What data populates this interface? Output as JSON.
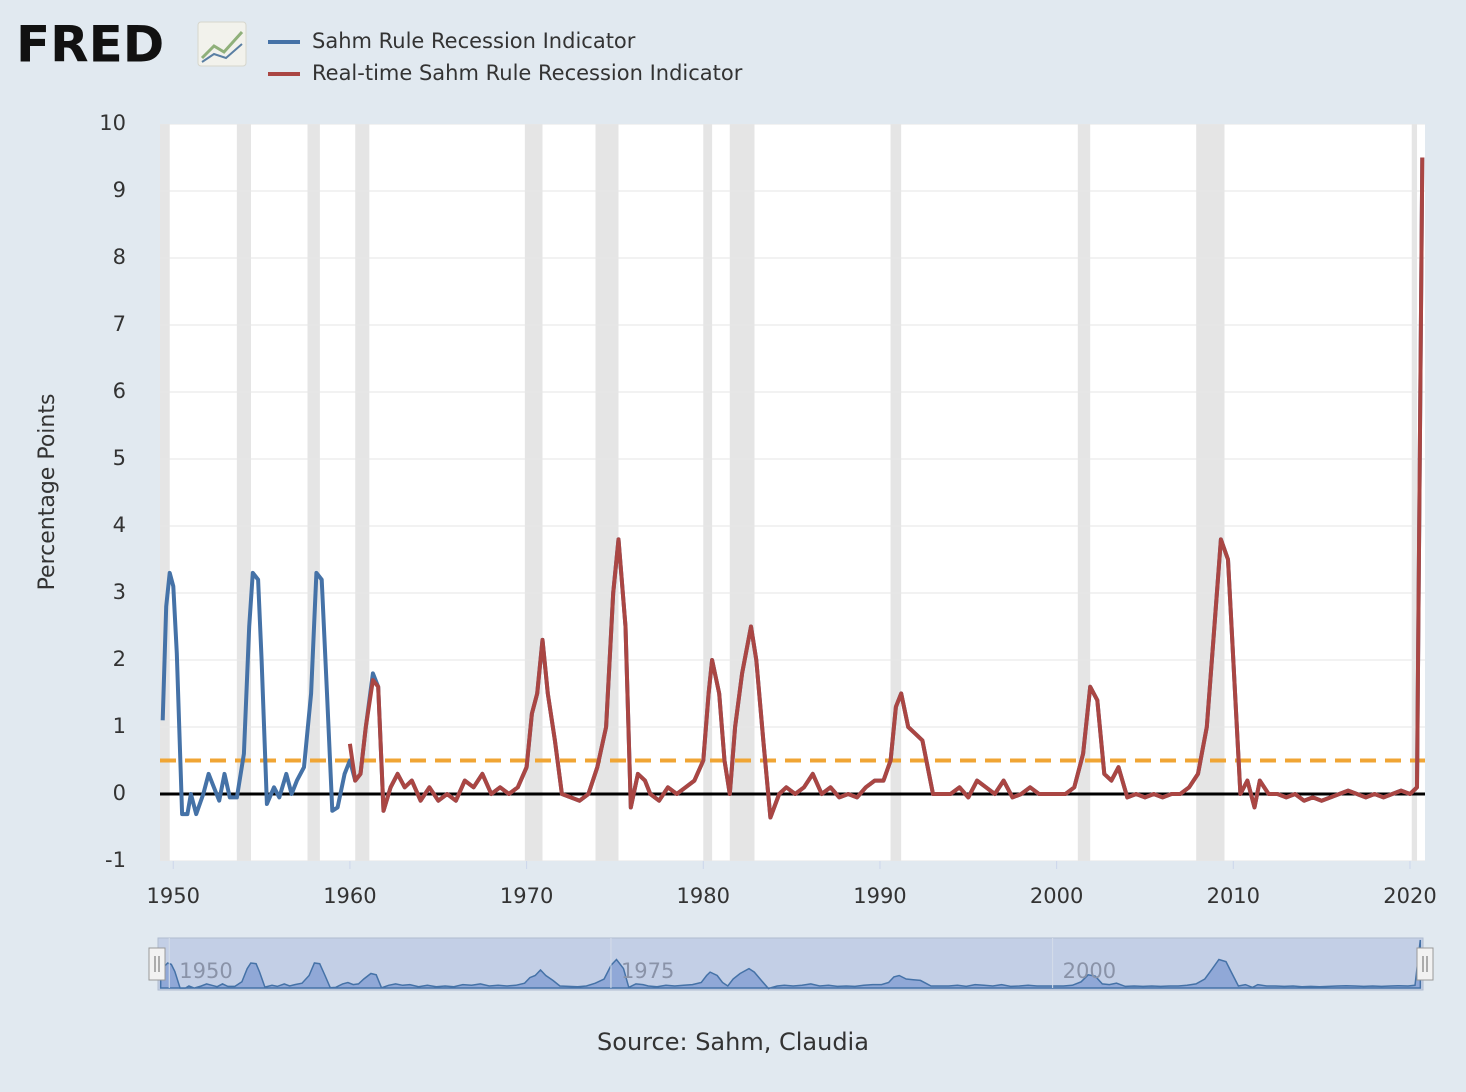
{
  "chart_data": {
    "type": "line",
    "logo": "FRED",
    "y_label": "Percentage Points",
    "source": "Source: Sahm, Claudia",
    "xlim": [
      1949.25,
      2020.85
    ],
    "xticks": [
      1950,
      1960,
      1970,
      1980,
      1990,
      2000,
      2010,
      2020
    ],
    "ylim": [
      -1,
      10
    ],
    "yticks": [
      -1,
      0,
      1,
      2,
      3,
      4,
      5,
      6,
      7,
      8,
      9,
      10
    ],
    "grid": true,
    "threshold": 0.5,
    "baseline": 0,
    "recessions": [
      [
        1948.9,
        1949.8
      ],
      [
        1953.6,
        1954.4
      ],
      [
        1957.6,
        1958.3
      ],
      [
        1960.3,
        1961.1
      ],
      [
        1969.9,
        1970.9
      ],
      [
        1973.9,
        1975.2
      ],
      [
        1980.0,
        1980.5
      ],
      [
        1981.5,
        1982.9
      ],
      [
        1990.6,
        1991.2
      ],
      [
        2001.2,
        2001.9
      ],
      [
        2007.9,
        2009.5
      ],
      [
        2020.1,
        2020.4
      ]
    ],
    "navigator": {
      "xticks": [
        1950,
        1975,
        2000
      ]
    },
    "x": [
      1949.4,
      1949.6,
      1949.8,
      1950.0,
      1950.2,
      1950.5,
      1950.8,
      1951.0,
      1951.3,
      1951.7,
      1952.0,
      1952.3,
      1952.6,
      1952.9,
      1953.2,
      1953.6,
      1954.0,
      1954.3,
      1954.5,
      1954.8,
      1955.0,
      1955.3,
      1955.7,
      1956.0,
      1956.4,
      1956.7,
      1957.0,
      1957.4,
      1957.8,
      1958.1,
      1958.4,
      1958.7,
      1959.0,
      1959.3,
      1959.7,
      1960.0,
      1960.3,
      1960.6,
      1960.9,
      1961.3,
      1961.6,
      1961.9,
      1962.3,
      1962.7,
      1963.1,
      1963.5,
      1964.0,
      1964.5,
      1965.0,
      1965.5,
      1966.0,
      1966.5,
      1967.0,
      1967.5,
      1968.0,
      1968.5,
      1969.0,
      1969.5,
      1970.0,
      1970.3,
      1970.6,
      1970.9,
      1971.2,
      1971.6,
      1972.0,
      1972.5,
      1973.0,
      1973.5,
      1974.0,
      1974.5,
      1974.9,
      1975.2,
      1975.6,
      1975.9,
      1976.3,
      1976.7,
      1977.0,
      1977.5,
      1978.0,
      1978.5,
      1979.0,
      1979.5,
      1980.0,
      1980.3,
      1980.5,
      1980.9,
      1981.2,
      1981.5,
      1981.8,
      1982.2,
      1982.7,
      1983.0,
      1983.4,
      1983.8,
      1984.3,
      1984.7,
      1985.2,
      1985.7,
      1986.2,
      1986.7,
      1987.2,
      1987.7,
      1988.2,
      1988.7,
      1989.2,
      1989.7,
      1990.2,
      1990.6,
      1990.9,
      1991.2,
      1991.6,
      1992.0,
      1992.4,
      1992.7,
      1993.0,
      1993.5,
      1994.0,
      1994.5,
      1995.0,
      1995.5,
      1996.0,
      1996.5,
      1997.0,
      1997.5,
      1998.0,
      1998.5,
      1999.0,
      1999.5,
      2000.0,
      2000.5,
      2001.0,
      2001.5,
      2001.9,
      2002.3,
      2002.7,
      2003.1,
      2003.5,
      2004.0,
      2004.5,
      2005.0,
      2005.5,
      2006.0,
      2006.5,
      2007.0,
      2007.5,
      2008.0,
      2008.5,
      2008.9,
      2009.3,
      2009.7,
      2010.0,
      2010.4,
      2010.8,
      2011.2,
      2011.5,
      2012.0,
      2012.5,
      2013.0,
      2013.5,
      2014.0,
      2014.5,
      2015.0,
      2015.5,
      2016.0,
      2016.5,
      2017.0,
      2017.5,
      2018.0,
      2018.5,
      2019.0,
      2019.5,
      2020.0,
      2020.4,
      2020.7
    ],
    "series": [
      {
        "name": "Sahm Rule Recession Indicator",
        "color": "#4572a7",
        "values": [
          1.1,
          2.8,
          3.3,
          3.1,
          2.1,
          -0.3,
          -0.3,
          0.0,
          -0.3,
          0.0,
          0.3,
          0.1,
          -0.1,
          0.3,
          -0.05,
          -0.05,
          0.6,
          2.5,
          3.3,
          3.2,
          2.0,
          -0.15,
          0.1,
          -0.05,
          0.3,
          0.0,
          0.2,
          0.4,
          1.5,
          3.3,
          3.2,
          1.5,
          -0.25,
          -0.2,
          0.3,
          0.5,
          0.2,
          0.3,
          1.0,
          1.8,
          1.6,
          -0.25,
          0.1,
          0.3,
          0.1,
          0.2,
          -0.1,
          0.1,
          -0.1,
          0.0,
          -0.1,
          0.2,
          0.1,
          0.3,
          0.0,
          0.1,
          0.0,
          0.1,
          0.4,
          1.2,
          1.5,
          2.3,
          1.5,
          0.8,
          0.0,
          -0.05,
          -0.1,
          0.0,
          0.4,
          1.0,
          3.0,
          3.8,
          2.5,
          -0.2,
          0.3,
          0.2,
          0.0,
          -0.1,
          0.1,
          0.0,
          0.1,
          0.2,
          0.5,
          1.5,
          2.0,
          1.5,
          0.5,
          0.0,
          1.0,
          1.8,
          2.5,
          2.0,
          0.8,
          -0.35,
          0.0,
          0.1,
          0.0,
          0.1,
          0.3,
          0.0,
          0.1,
          -0.05,
          0.0,
          -0.05,
          0.1,
          0.2,
          0.2,
          0.5,
          1.3,
          1.5,
          1.0,
          0.9,
          0.8,
          0.4,
          0.0,
          0.0,
          0.0,
          0.1,
          -0.05,
          0.2,
          0.1,
          0.0,
          0.2,
          -0.05,
          0.0,
          0.1,
          0.0,
          0.0,
          0.0,
          0.0,
          0.1,
          0.6,
          1.6,
          1.4,
          0.3,
          0.2,
          0.4,
          -0.05,
          0.0,
          -0.05,
          0.0,
          -0.05,
          0.0,
          0.0,
          0.1,
          0.3,
          1.0,
          2.4,
          3.8,
          3.5,
          2.0,
          0.0,
          0.2,
          -0.2,
          0.2,
          0.0,
          0.0,
          -0.05,
          0.0,
          -0.1,
          -0.05,
          -0.1,
          -0.05,
          0.0,
          0.05,
          0.0,
          -0.05,
          0.0,
          -0.05,
          0.0,
          0.05,
          0.0,
          0.1,
          9.5
        ]
      },
      {
        "name": "Real-time Sahm Rule Recession Indicator",
        "color": "#aa4643",
        "values": [
          null,
          null,
          null,
          null,
          null,
          null,
          null,
          null,
          null,
          null,
          null,
          null,
          null,
          null,
          null,
          null,
          null,
          null,
          null,
          null,
          null,
          null,
          null,
          null,
          null,
          null,
          null,
          null,
          null,
          null,
          null,
          null,
          null,
          null,
          null,
          0.75,
          0.2,
          0.3,
          1.0,
          1.7,
          1.6,
          -0.25,
          0.1,
          0.3,
          0.1,
          0.2,
          -0.1,
          0.1,
          -0.1,
          0.0,
          -0.1,
          0.2,
          0.1,
          0.3,
          0.0,
          0.1,
          0.0,
          0.1,
          0.4,
          1.2,
          1.5,
          2.3,
          1.5,
          0.8,
          0.0,
          -0.05,
          -0.1,
          0.0,
          0.4,
          1.0,
          3.0,
          3.8,
          2.5,
          -0.2,
          0.3,
          0.2,
          0.0,
          -0.1,
          0.1,
          0.0,
          0.1,
          0.2,
          0.5,
          1.5,
          2.0,
          1.5,
          0.5,
          0.0,
          1.0,
          1.8,
          2.5,
          2.0,
          0.8,
          -0.35,
          0.0,
          0.1,
          0.0,
          0.1,
          0.3,
          0.0,
          0.1,
          -0.05,
          0.0,
          -0.05,
          0.1,
          0.2,
          0.2,
          0.5,
          1.3,
          1.5,
          1.0,
          0.9,
          0.8,
          0.4,
          0.0,
          0.0,
          0.0,
          0.1,
          -0.05,
          0.2,
          0.1,
          0.0,
          0.2,
          -0.05,
          0.0,
          0.1,
          0.0,
          0.0,
          0.0,
          0.0,
          0.1,
          0.6,
          1.6,
          1.4,
          0.3,
          0.2,
          0.4,
          -0.05,
          0.0,
          -0.05,
          0.0,
          -0.05,
          0.0,
          0.0,
          0.1,
          0.3,
          1.0,
          2.4,
          3.8,
          3.5,
          2.0,
          0.0,
          0.2,
          -0.2,
          0.2,
          0.0,
          0.0,
          -0.05,
          0.0,
          -0.1,
          -0.05,
          -0.1,
          -0.05,
          0.0,
          0.05,
          0.0,
          -0.05,
          0.0,
          -0.05,
          0.0,
          0.05,
          0.0,
          0.1,
          9.5
        ]
      }
    ]
  }
}
